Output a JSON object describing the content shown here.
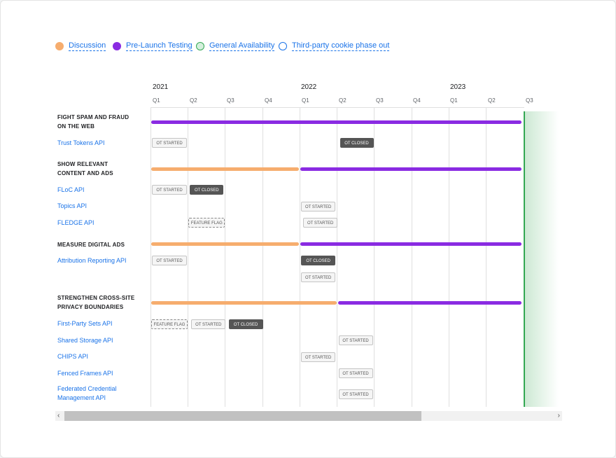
{
  "legend": [
    {
      "label": "Discussion",
      "color": "#f6ad6e",
      "style": "filled"
    },
    {
      "label": "Pre-Launch Testing",
      "color": "#8a2be2",
      "style": "filled"
    },
    {
      "label": "General Availability",
      "color": "#34a853",
      "style": "light"
    },
    {
      "label": "Third-party cookie phase out",
      "color": "#1a73e8",
      "style": "outline"
    }
  ],
  "timeline": {
    "years": [
      "2021",
      "2022",
      "2023"
    ],
    "quarters": [
      "Q1",
      "Q2",
      "Q3",
      "Q4",
      "Q1",
      "Q2",
      "Q3",
      "Q4",
      "Q1",
      "Q2",
      "Q3"
    ]
  },
  "sections": [
    {
      "title_lines": [
        "FIGHT SPAM AND FRAUD",
        "ON THE WEB"
      ]
    },
    {
      "title_lines": [
        "SHOW RELEVANT",
        "CONTENT AND ADS"
      ]
    },
    {
      "title_lines": [
        "MEASURE DIGITAL ADS"
      ]
    },
    {
      "title_lines": [
        "STRENGTHEN CROSS-SITE",
        "PRIVACY BOUNDARIES"
      ]
    }
  ],
  "apis": [
    {
      "lines": [
        "Trust Tokens API"
      ]
    },
    {
      "lines": [
        "FLoC API"
      ]
    },
    {
      "lines": [
        "Topics API"
      ]
    },
    {
      "lines": [
        "FLEDGE API"
      ]
    },
    {
      "lines": [
        "Attribution Reporting API"
      ]
    },
    {
      "lines": [
        "First-Party Sets API"
      ]
    },
    {
      "lines": [
        "Shared Storage API"
      ]
    },
    {
      "lines": [
        "CHIPS API"
      ]
    },
    {
      "lines": [
        "Fenced Frames API"
      ]
    },
    {
      "lines": [
        "Federated Credential",
        "Management API"
      ]
    }
  ],
  "phase_bars": [
    {
      "section": "FIGHT SPAM AND FRAUD ON THE WEB",
      "phase": "Pre-Launch Testing",
      "start_quarter": 1,
      "end_quarter": 11
    },
    {
      "section": "SHOW RELEVANT CONTENT AND ADS",
      "phase": "Discussion",
      "start_quarter": 1,
      "end_quarter": 5
    },
    {
      "section": "SHOW RELEVANT CONTENT AND ADS",
      "phase": "Pre-Launch Testing",
      "start_quarter": 5,
      "end_quarter": 11
    },
    {
      "section": "MEASURE DIGITAL ADS",
      "phase": "Discussion",
      "start_quarter": 1,
      "end_quarter": 5
    },
    {
      "section": "MEASURE DIGITAL ADS",
      "phase": "Pre-Launch Testing",
      "start_quarter": 5,
      "end_quarter": 11
    },
    {
      "section": "STRENGTHEN CROSS-SITE PRIVACY BOUNDARIES",
      "phase": "Discussion",
      "start_quarter": 1,
      "end_quarter": 6
    },
    {
      "section": "STRENGTHEN CROSS-SITE PRIVACY BOUNDARIES",
      "phase": "Pre-Launch Testing",
      "start_quarter": 6,
      "end_quarter": 11
    }
  ],
  "milestones": [
    {
      "api": "Trust Tokens API",
      "label": "OT STARTED",
      "kind": "started",
      "quarter": 1
    },
    {
      "api": "Trust Tokens API",
      "label": "OT CLOSED",
      "kind": "closed",
      "quarter": 6
    },
    {
      "api": "FLoC API",
      "label": "OT STARTED",
      "kind": "started",
      "quarter": 1
    },
    {
      "api": "FLoC API",
      "label": "OT CLOSED",
      "kind": "closed",
      "quarter": 2
    },
    {
      "api": "Topics API",
      "label": "OT STARTED",
      "kind": "started",
      "quarter": 5
    },
    {
      "api": "FLEDGE API",
      "label": "FEATURE FLAG",
      "kind": "flag",
      "quarter": 2
    },
    {
      "api": "FLEDGE API",
      "label": "OT STARTED",
      "kind": "started",
      "quarter": 5
    },
    {
      "api": "Attribution Reporting API",
      "label": "OT STARTED",
      "kind": "started",
      "quarter": 1
    },
    {
      "api": "Attribution Reporting API",
      "label": "OT CLOSED",
      "kind": "closed",
      "quarter": 5
    },
    {
      "api": "Attribution Reporting API",
      "label": "OT STARTED",
      "kind": "started",
      "quarter": 5
    },
    {
      "api": "First-Party Sets API",
      "label": "FEATURE FLAG",
      "kind": "flag",
      "quarter": 1
    },
    {
      "api": "First-Party Sets API",
      "label": "OT STARTED",
      "kind": "started",
      "quarter": 2
    },
    {
      "api": "First-Party Sets API",
      "label": "OT CLOSED",
      "kind": "closed",
      "quarter": 3
    },
    {
      "api": "Shared Storage API",
      "label": "OT STARTED",
      "kind": "started",
      "quarter": 6
    },
    {
      "api": "CHIPS API",
      "label": "OT STARTED",
      "kind": "started",
      "quarter": 5
    },
    {
      "api": "Fenced Frames API",
      "label": "OT STARTED",
      "kind": "started",
      "quarter": 6
    },
    {
      "api": "Federated Credential Management API",
      "label": "OT STARTED",
      "kind": "started",
      "quarter": 6
    }
  ],
  "scrollbar": {
    "left_icon": "chevron-left-icon",
    "right_icon": "chevron-right-icon",
    "left_glyph": "‹",
    "right_glyph": "›",
    "visible_fraction": 0.73,
    "scroll_position": 0
  }
}
